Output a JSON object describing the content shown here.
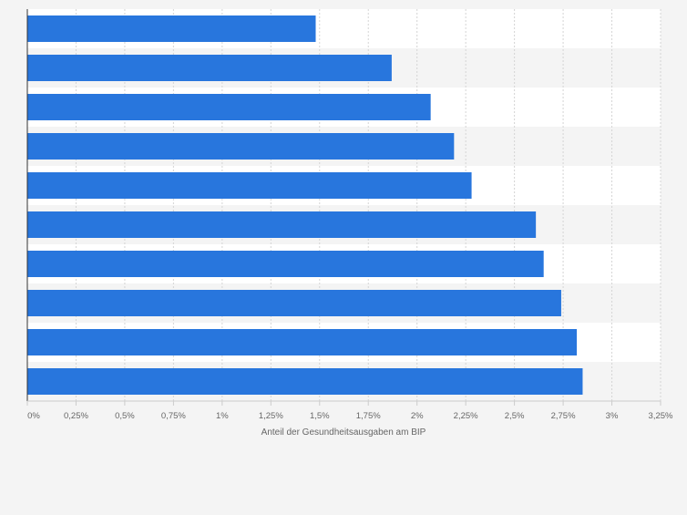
{
  "chart_data": {
    "type": "bar",
    "orientation": "horizontal",
    "categories": [
      "",
      "",
      "",
      "",
      "",
      "",
      "",
      "",
      "",
      ""
    ],
    "values": [
      1.48,
      1.87,
      2.07,
      2.19,
      2.28,
      2.61,
      2.65,
      2.74,
      2.82,
      2.85
    ],
    "xlabel": "Anteil der Gesundheitsausgaben am BIP",
    "ylabel": "",
    "xlim": [
      0,
      3.25
    ],
    "xticks": [
      0,
      0.25,
      0.5,
      0.75,
      1,
      1.25,
      1.5,
      1.75,
      2,
      2.25,
      2.5,
      2.75,
      3,
      3.25
    ],
    "xtick_labels": [
      "0%",
      "0,25%",
      "0,5%",
      "0,75%",
      "1%",
      "1,25%",
      "1,5%",
      "1,75%",
      "2%",
      "2,25%",
      "2,5%",
      "2,75%",
      "3%",
      "3,25%"
    ],
    "grid": "vertical dashed",
    "legend": "none",
    "colors": {
      "bar": "#2876dd",
      "background": "#f4f4f4",
      "row_light": "#ffffff",
      "row_dark": "#f4f4f4",
      "grid": "#d4d4d4",
      "axis": "#333333",
      "text": "#666666"
    }
  }
}
